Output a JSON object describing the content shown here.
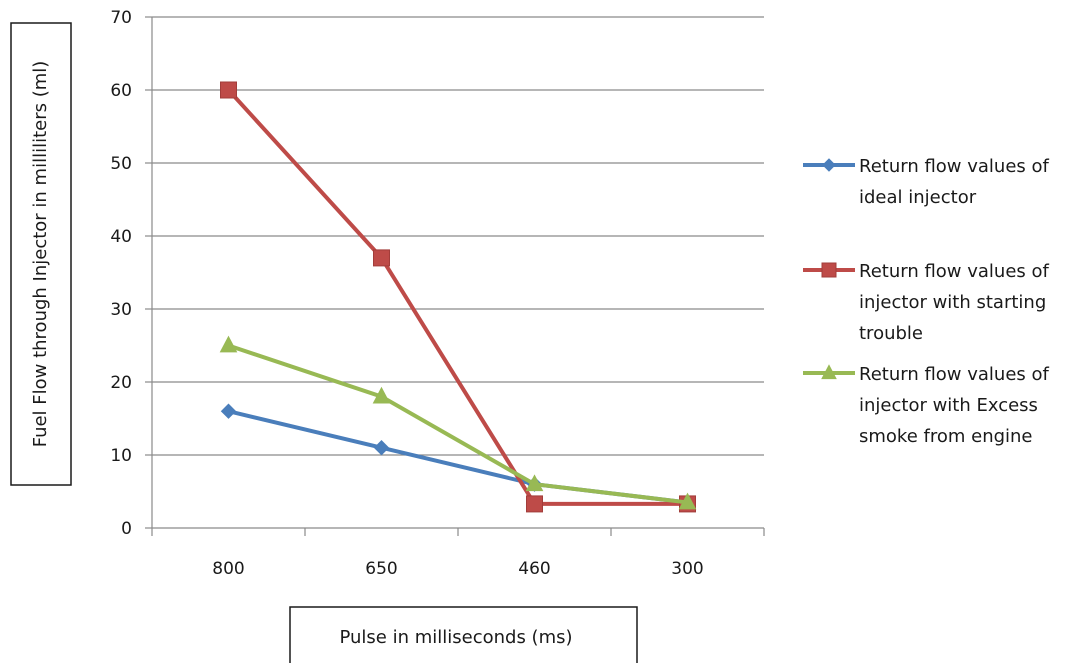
{
  "chart_data": {
    "type": "line",
    "xlabel": "Pulse in milliseconds (ms)",
    "ylabel": "Fuel Flow through Injector in milliliters (ml)",
    "categories": [
      "800",
      "650",
      "460",
      "300"
    ],
    "ylim": [
      0,
      70
    ],
    "yticks": [
      0,
      10,
      20,
      30,
      40,
      50,
      60,
      70
    ],
    "grid": true,
    "legend_position": "right",
    "series": [
      {
        "name": "Return flow values of ideal injector",
        "legend_lines": [
          "Return flow values of",
          "ideal injector"
        ],
        "values": [
          16,
          11,
          6,
          3.5
        ],
        "color": "#4a7ebb",
        "marker": "diamond"
      },
      {
        "name": "Return flow values of injector with starting trouble",
        "legend_lines": [
          "Return flow values of",
          "injector with starting",
          "trouble"
        ],
        "values": [
          60,
          37,
          3.3,
          3.3
        ],
        "color": "#be4b48",
        "marker": "square"
      },
      {
        "name": "Return flow values of injector with Excess smoke from engine",
        "legend_lines": [
          "Return flow values of",
          "injector with Excess",
          "smoke from engine"
        ],
        "values": [
          25,
          18,
          6,
          3.5
        ],
        "color": "#98b954",
        "marker": "triangle"
      }
    ]
  }
}
